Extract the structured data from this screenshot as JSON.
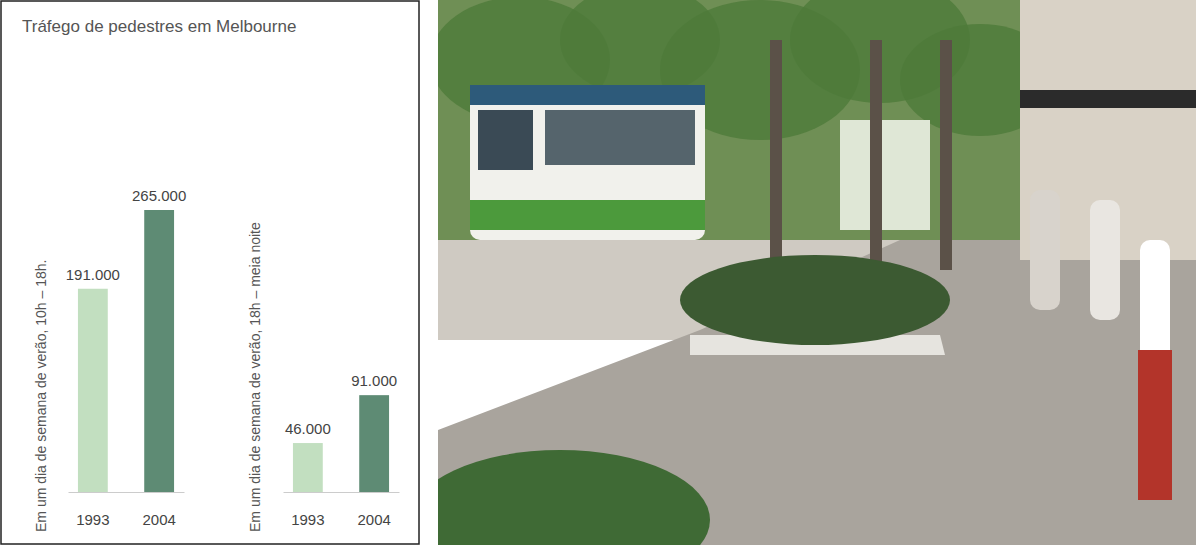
{
  "chart_data": [
    {
      "type": "bar",
      "title": "Tráfego de pedestres em Melbourne",
      "y_label": "Em um dia de semana de verão, 10h – 18h.",
      "categories": [
        "1993",
        "2004"
      ],
      "values": [
        191000,
        265000
      ],
      "value_labels": [
        "191.000",
        "265.000"
      ],
      "colors": [
        "#c2dfc0",
        "#5e8b74"
      ],
      "ylim": [
        0,
        265000
      ],
      "data_labels": true,
      "tick_labels": "x"
    },
    {
      "type": "bar",
      "y_label": "Em um dia de semana de verão, 18h – meia noite",
      "categories": [
        "1993",
        "2004"
      ],
      "values": [
        46000,
        91000
      ],
      "value_labels": [
        "46.000",
        "91.000"
      ],
      "colors": [
        "#c2dfc0",
        "#5e8b74"
      ],
      "ylim": [
        0,
        265000
      ],
      "data_labels": true,
      "tick_labels": "x"
    }
  ]
}
